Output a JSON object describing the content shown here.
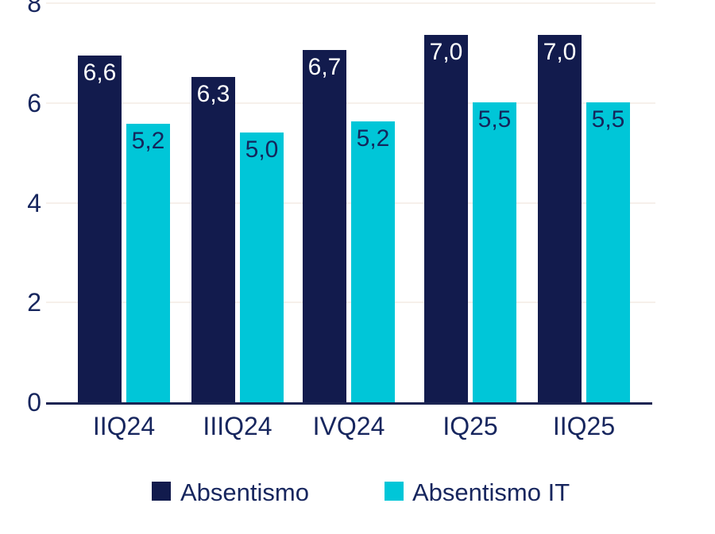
{
  "chart_data": {
    "type": "bar",
    "title": "",
    "categories": [
      "IIQ24",
      "IIIQ24",
      "IVQ24",
      "IQ25",
      "IIQ25"
    ],
    "series": [
      {
        "name": "Absentismo",
        "color": "#121b4d",
        "label_color": "#ffffff",
        "values": [
          6.6,
          6.3,
          6.7,
          7.0,
          7.0
        ],
        "value_labels": [
          "6,6",
          "6,3",
          "6,7",
          "7,0",
          "7,0"
        ],
        "display_values": [
          6.95,
          6.52,
          7.06,
          7.36,
          7.36
        ]
      },
      {
        "name": "Absentismo IT",
        "color": "#00c6d8",
        "label_color": "#14265c",
        "values": [
          5.2,
          5.0,
          5.2,
          5.5,
          5.5
        ],
        "value_labels": [
          "5,2",
          "5,0",
          "5,2",
          "5,5",
          "5,5"
        ],
        "display_values": [
          5.58,
          5.41,
          5.63,
          6.01,
          6.01
        ]
      }
    ],
    "ylim": [
      0,
      8
    ],
    "yticks": [
      0,
      2,
      4,
      6,
      8
    ],
    "ytick_labels": [
      "0",
      "2",
      "4",
      "6",
      "8"
    ],
    "xlabel": "",
    "ylabel": "",
    "grid": "horizontal",
    "legend_position": "bottom",
    "decimal_separator": ","
  },
  "colors": {
    "navy": "#121b4d",
    "cyan": "#00c6d8",
    "text": "#17265e",
    "gridline": "#f6f0eb",
    "axis_line": "#1b2452",
    "background": "#ffffff"
  }
}
